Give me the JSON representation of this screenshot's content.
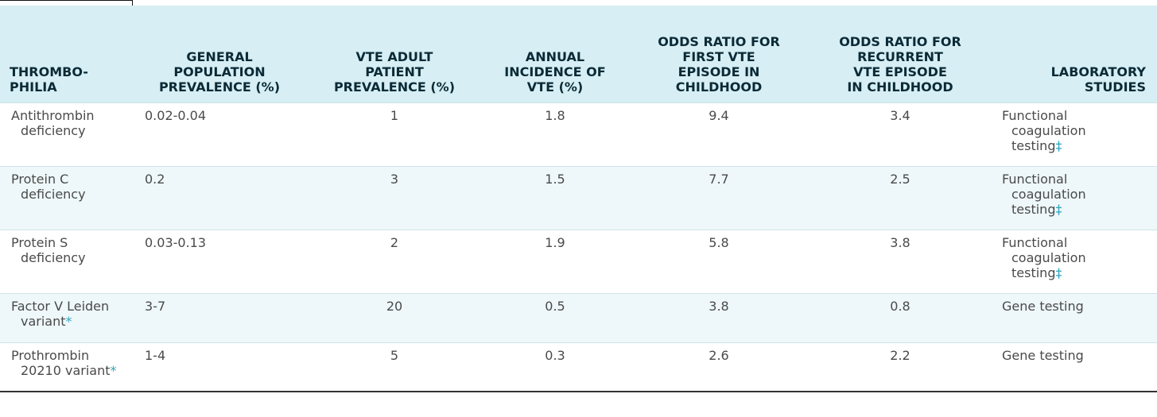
{
  "table": {
    "headers": [
      "THROMBO-\nPHILIA",
      "GENERAL\nPOPULATION\nPREVALENCE (%)",
      "VTE ADULT\nPATIENT\nPREVALENCE (%)",
      "ANNUAL\nINCIDENCE OF\nVTE (%)",
      "ODDS RATIO FOR\nFIRST VTE\nEPISODE IN\nCHILDHOOD",
      "ODDS RATIO FOR\nRECURRENT\nVTE EPISODE\nIN CHILDHOOD",
      "LABORATORY\nSTUDIES"
    ],
    "rows": [
      {
        "name1": "Antithrombin",
        "name2": "deficiency",
        "name_mark": "",
        "general": "0.02-0.04",
        "vte_adult": "1",
        "annual": "1.8",
        "or_first": "9.4",
        "or_recurrent": "3.4",
        "lab1": "Functional",
        "lab2": "coagulation",
        "lab3": "testing",
        "lab_mark": "‡"
      },
      {
        "name1": "Protein C",
        "name2": "deficiency",
        "name_mark": "",
        "general": "0.2",
        "vte_adult": "3",
        "annual": "1.5",
        "or_first": "7.7",
        "or_recurrent": "2.5",
        "lab1": "Functional",
        "lab2": "coagulation",
        "lab3": "testing",
        "lab_mark": "‡"
      },
      {
        "name1": "Protein S",
        "name2": "deficiency",
        "name_mark": "",
        "general": "0.03-0.13",
        "vte_adult": "2",
        "annual": "1.9",
        "or_first": "5.8",
        "or_recurrent": "3.8",
        "lab1": "Functional",
        "lab2": "coagulation",
        "lab3": "testing",
        "lab_mark": "‡"
      },
      {
        "name1": "Factor V Leiden",
        "name2": "variant",
        "name_mark": "*",
        "general": "3-7",
        "vte_adult": "20",
        "annual": "0.5",
        "or_first": "3.8",
        "or_recurrent": "0.8",
        "lab1": "Gene testing",
        "lab2": "",
        "lab3": "",
        "lab_mark": ""
      },
      {
        "name1": "Prothrombin",
        "name2": "20210 variant",
        "name_mark": "*",
        "general": "1-4",
        "vte_adult": "5",
        "annual": "0.3",
        "or_first": "2.6",
        "or_recurrent": "2.2",
        "lab1": "Gene testing",
        "lab2": "",
        "lab3": "",
        "lab_mark": ""
      }
    ]
  },
  "colors": {
    "header_bg": "#d6eef4",
    "alt_row_bg": "#eef7f9",
    "header_text": "#0b2a36",
    "body_text": "#4a4a4a",
    "footnote_mark": "#2ea6bf"
  }
}
